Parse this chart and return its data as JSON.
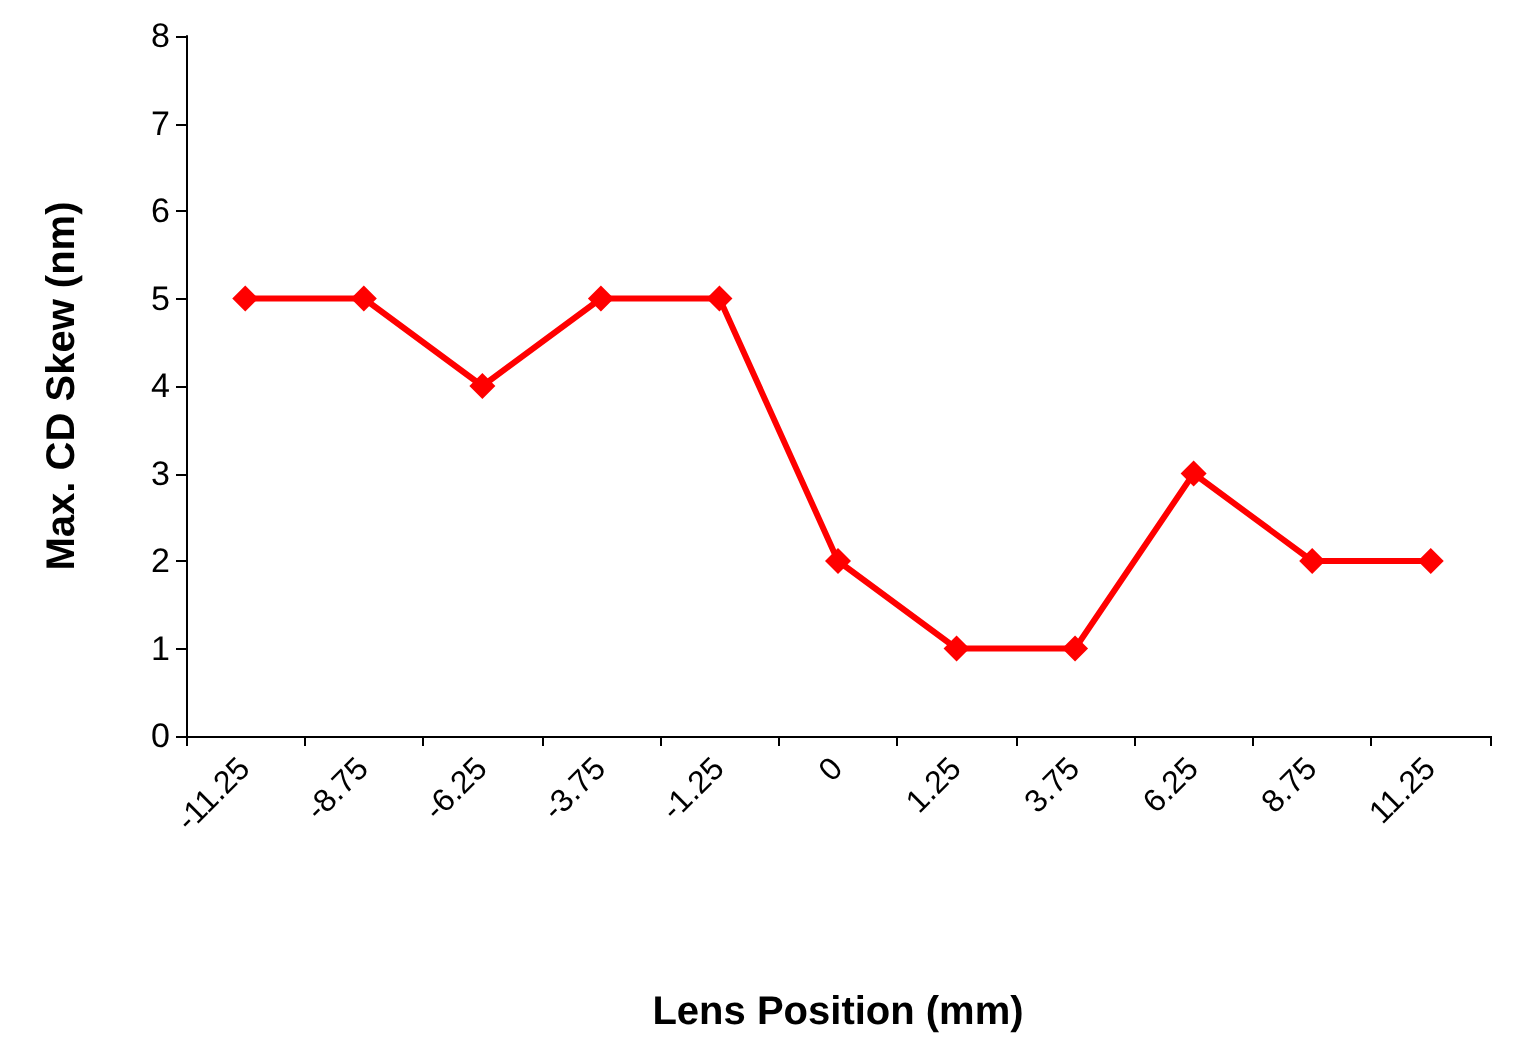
{
  "chart_data": {
    "type": "line",
    "xlabel": "Lens Position (mm)",
    "ylabel": "Max. CD Skew (nm)",
    "categories": [
      "-11.25",
      "-8.75",
      "-6.25",
      "-3.75",
      "-1.25",
      "0",
      "1.25",
      "3.75",
      "6.25",
      "8.75",
      "11.25"
    ],
    "series": [
      {
        "color": "#ff0000",
        "values": [
          5,
          5,
          4,
          5,
          5,
          2,
          1,
          1,
          3,
          2,
          2
        ]
      }
    ],
    "ylim": [
      0,
      8
    ],
    "yticks": [
      0,
      1,
      2,
      3,
      4,
      5,
      6,
      7,
      8
    ],
    "grid": false,
    "marker": "diamond",
    "line_style": "solid"
  }
}
